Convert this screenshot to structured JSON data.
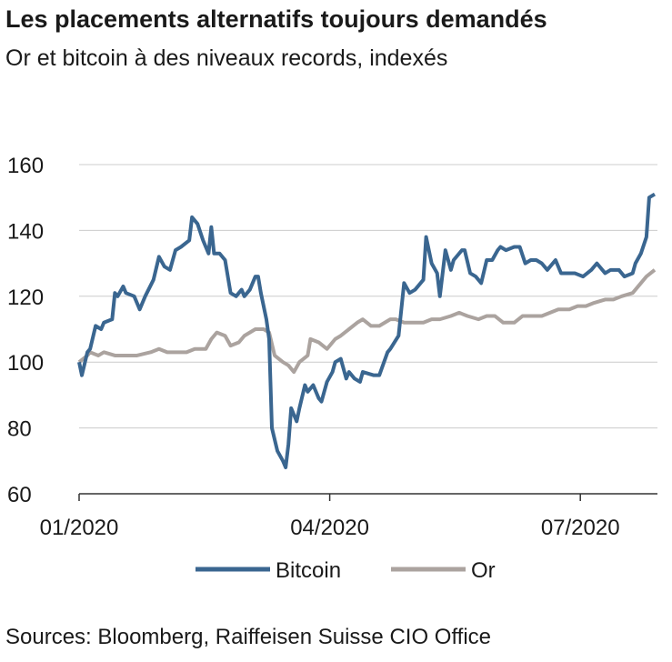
{
  "chart_data": {
    "type": "line",
    "title": "Les placements alternatifs toujours demandés",
    "subtitle": "Or et bitcoin à des niveaux records, indexés",
    "source": "Sources: Bloomberg, Raiffeisen Suisse CIO Office",
    "xlim": [
      0,
      210
    ],
    "xticks": [
      {
        "value": 0,
        "label": "01/2020"
      },
      {
        "value": 91,
        "label": "04/2020"
      },
      {
        "value": 182,
        "label": "07/2020"
      }
    ],
    "ylim": [
      60,
      160
    ],
    "yticks": [
      60,
      80,
      100,
      120,
      140,
      160
    ],
    "grid": true,
    "legend": "bottom",
    "series": [
      {
        "name": "Bitcoin",
        "color": "#3a6690",
        "x": [
          0,
          1,
          3,
          4,
          6,
          8,
          9,
          12,
          13,
          14,
          16,
          17,
          20,
          22,
          24,
          27,
          29,
          31,
          33,
          35,
          37,
          40,
          41,
          43,
          45,
          47,
          48,
          49,
          51,
          53,
          55,
          57,
          59,
          60,
          62,
          64,
          65,
          66,
          68,
          69,
          70,
          72,
          74,
          75,
          76,
          77,
          79,
          80,
          82,
          83,
          85,
          87,
          88,
          90,
          92,
          93,
          95,
          97,
          98,
          100,
          102,
          103,
          107,
          109,
          112,
          113,
          116,
          118,
          120,
          122,
          125,
          126,
          128,
          130,
          131,
          133,
          135,
          136,
          139,
          140,
          142,
          144,
          146,
          148,
          150,
          152,
          153,
          155,
          158,
          160,
          162,
          164,
          166,
          168,
          170,
          173,
          175,
          178,
          180,
          183,
          186,
          188,
          191,
          193,
          196,
          198,
          201,
          202,
          204,
          206,
          207,
          209
        ],
        "values": [
          100,
          96,
          103,
          104,
          111,
          110,
          112,
          113,
          121,
          120,
          123,
          121,
          120,
          116,
          120,
          125,
          132,
          129,
          128,
          134,
          135,
          137,
          144,
          142,
          137,
          133,
          141,
          133,
          133,
          131,
          121,
          120,
          122,
          120,
          122,
          126,
          126,
          121,
          113,
          107,
          80,
          73,
          70,
          68,
          75,
          86,
          82,
          86,
          93,
          91,
          93,
          89,
          88,
          94,
          97,
          100,
          101,
          95,
          97,
          95,
          94,
          97,
          96,
          96,
          103,
          104,
          108,
          124,
          121,
          122,
          125,
          138,
          130,
          127,
          120,
          134,
          128,
          131,
          134,
          134,
          127,
          126,
          124,
          131,
          131,
          134,
          135,
          134,
          135,
          135,
          130,
          131,
          131,
          130,
          128,
          131,
          127,
          127,
          127,
          126,
          128,
          130,
          127,
          128,
          128,
          126,
          127,
          130,
          133,
          138,
          150,
          151
        ]
      },
      {
        "name": "Or",
        "color": "#aba39f",
        "x": [
          0,
          3,
          4,
          7,
          9,
          13,
          16,
          21,
          26,
          29,
          32,
          36,
          39,
          42,
          46,
          48,
          50,
          53,
          55,
          58,
          60,
          64,
          67,
          69,
          71,
          74,
          76,
          78,
          80,
          83,
          84,
          87,
          90,
          93,
          95,
          98,
          101,
          103,
          106,
          109,
          113,
          115,
          118,
          121,
          125,
          128,
          131,
          135,
          138,
          141,
          145,
          148,
          151,
          154,
          158,
          161,
          164,
          168,
          171,
          174,
          178,
          181,
          184,
          187,
          191,
          194,
          197,
          201,
          204,
          206,
          209
        ],
        "values": [
          100,
          102,
          103,
          102,
          103,
          102,
          102,
          102,
          103,
          104,
          103,
          103,
          103,
          104,
          104,
          107,
          109,
          108,
          105,
          106,
          108,
          110,
          110,
          109,
          102,
          100,
          99,
          97,
          100,
          102,
          107,
          106,
          104,
          107,
          108,
          110,
          112,
          113,
          111,
          111,
          113,
          113,
          112,
          112,
          112,
          113,
          113,
          114,
          115,
          114,
          113,
          114,
          114,
          112,
          112,
          114,
          114,
          114,
          115,
          116,
          116,
          117,
          117,
          118,
          119,
          119,
          120,
          121,
          124,
          126,
          128
        ]
      }
    ]
  }
}
